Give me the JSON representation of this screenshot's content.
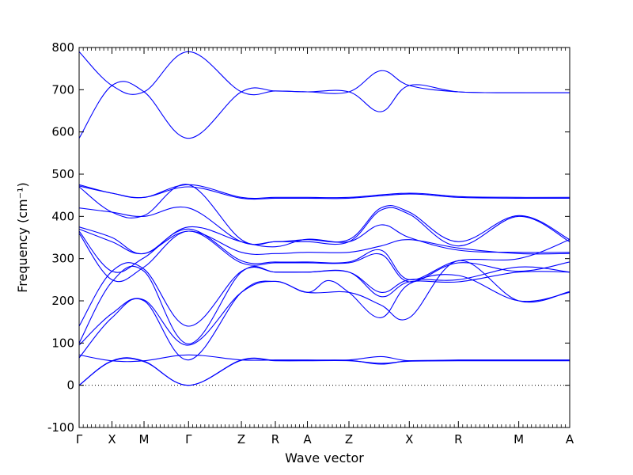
{
  "chart_data": {
    "type": "line",
    "xlabel": "Wave vector",
    "ylabel": "Frequency (cm⁻¹)",
    "ylim": [
      -100,
      800
    ],
    "yticks": [
      -100,
      0,
      100,
      200,
      300,
      400,
      500,
      600,
      700,
      800
    ],
    "x_range": [
      0,
      13
    ],
    "high_symmetry_points": [
      {
        "label": "Γ",
        "x": 0
      },
      {
        "label": "X",
        "x": 0.87
      },
      {
        "label": "M",
        "x": 1.72
      },
      {
        "label": "Γ",
        "x": 2.9
      },
      {
        "label": "Z",
        "x": 4.3
      },
      {
        "label": "R",
        "x": 5.2
      },
      {
        "label": "A",
        "x": 6.05
      },
      {
        "label": "Z",
        "x": 7.15
      },
      {
        "label": "X",
        "x": 8.75
      },
      {
        "label": "R",
        "x": 10.05
      },
      {
        "label": "M",
        "x": 11.65
      },
      {
        "label": "A",
        "x": 13
      }
    ],
    "zero_line": true,
    "color": "#0000ff",
    "series": [
      {
        "points": [
          [
            0,
            790
          ],
          [
            0.87,
            710
          ],
          [
            1.72,
            695
          ],
          [
            2.9,
            790
          ],
          [
            4.3,
            695
          ],
          [
            5.2,
            697
          ],
          [
            6.05,
            695
          ],
          [
            7.15,
            695
          ],
          [
            8.0,
            745
          ],
          [
            8.75,
            710
          ],
          [
            10.05,
            695
          ],
          [
            11.65,
            693
          ],
          [
            13,
            693
          ]
        ]
      },
      {
        "points": [
          [
            0,
            585
          ],
          [
            0.87,
            710
          ],
          [
            1.72,
            695
          ],
          [
            2.9,
            585
          ],
          [
            4.3,
            695
          ],
          [
            5.2,
            697
          ],
          [
            6.05,
            695
          ],
          [
            7.15,
            695
          ],
          [
            8.0,
            648
          ],
          [
            8.75,
            710
          ],
          [
            10.05,
            695
          ],
          [
            11.65,
            693
          ],
          [
            13,
            693
          ]
        ]
      },
      {
        "points": [
          [
            0,
            475
          ],
          [
            0.87,
            455
          ],
          [
            1.72,
            445
          ],
          [
            2.9,
            475
          ],
          [
            4.3,
            445
          ],
          [
            5.2,
            445
          ],
          [
            6.05,
            445
          ],
          [
            7.15,
            445
          ],
          [
            8.75,
            455
          ],
          [
            10.05,
            447
          ],
          [
            11.65,
            445
          ],
          [
            13,
            445
          ]
        ]
      },
      {
        "points": [
          [
            0,
            472
          ],
          [
            0.87,
            455
          ],
          [
            1.72,
            445
          ],
          [
            2.9,
            470
          ],
          [
            4.3,
            443
          ],
          [
            5.2,
            443
          ],
          [
            6.05,
            443
          ],
          [
            7.15,
            443
          ],
          [
            8.75,
            453
          ],
          [
            10.05,
            445
          ],
          [
            11.65,
            443
          ],
          [
            13,
            443
          ]
        ]
      },
      {
        "points": [
          [
            0,
            470
          ],
          [
            0.87,
            410
          ],
          [
            1.72,
            402
          ],
          [
            2.9,
            475
          ],
          [
            4.3,
            345
          ],
          [
            5.2,
            340
          ],
          [
            6.05,
            345
          ],
          [
            7.15,
            345
          ],
          [
            8.0,
            420
          ],
          [
            8.75,
            410
          ],
          [
            10.05,
            340
          ],
          [
            11.65,
            402
          ],
          [
            13,
            345
          ]
        ]
      },
      {
        "points": [
          [
            0,
            420
          ],
          [
            0.87,
            410
          ],
          [
            1.72,
            400
          ],
          [
            2.9,
            420
          ],
          [
            4.3,
            340
          ],
          [
            5.2,
            340
          ],
          [
            6.05,
            340
          ],
          [
            7.15,
            340
          ],
          [
            8.0,
            415
          ],
          [
            8.75,
            405
          ],
          [
            10.05,
            330
          ],
          [
            11.65,
            400
          ],
          [
            13,
            340
          ]
        ]
      },
      {
        "points": [
          [
            0,
            375
          ],
          [
            0.87,
            350
          ],
          [
            1.72,
            312
          ],
          [
            2.9,
            375
          ],
          [
            4.3,
            340
          ],
          [
            5.2,
            328
          ],
          [
            6.05,
            346
          ],
          [
            7.15,
            340
          ],
          [
            8.0,
            380
          ],
          [
            8.75,
            350
          ],
          [
            10.05,
            320
          ],
          [
            11.65,
            315
          ],
          [
            13,
            315
          ]
        ]
      },
      {
        "points": [
          [
            0,
            370
          ],
          [
            0.87,
            340
          ],
          [
            1.72,
            312
          ],
          [
            2.9,
            365
          ],
          [
            4.3,
            315
          ],
          [
            5.2,
            312
          ],
          [
            6.05,
            315
          ],
          [
            7.15,
            315
          ],
          [
            8.0,
            330
          ],
          [
            8.75,
            345
          ],
          [
            10.05,
            325
          ],
          [
            11.65,
            312
          ],
          [
            13,
            312
          ]
        ]
      },
      {
        "points": [
          [
            0,
            365
          ],
          [
            0.87,
            270
          ],
          [
            1.72,
            302
          ],
          [
            2.9,
            370
          ],
          [
            4.3,
            295
          ],
          [
            5.2,
            292
          ],
          [
            6.05,
            292
          ],
          [
            7.15,
            292
          ],
          [
            8.0,
            320
          ],
          [
            8.75,
            250
          ],
          [
            10.05,
            295
          ],
          [
            11.65,
            300
          ],
          [
            13,
            345
          ]
        ]
      },
      {
        "points": [
          [
            0,
            360
          ],
          [
            0.87,
            250
          ],
          [
            1.72,
            280
          ],
          [
            2.9,
            365
          ],
          [
            4.3,
            290
          ],
          [
            5.2,
            290
          ],
          [
            6.05,
            290
          ],
          [
            7.15,
            290
          ],
          [
            8.0,
            310
          ],
          [
            8.75,
            245
          ],
          [
            10.05,
            290
          ],
          [
            11.65,
            270
          ],
          [
            13,
            292
          ]
        ]
      },
      {
        "points": [
          [
            0,
            140
          ],
          [
            0.87,
            270
          ],
          [
            1.72,
            275
          ],
          [
            2.9,
            140
          ],
          [
            4.3,
            270
          ],
          [
            5.2,
            268
          ],
          [
            6.05,
            268
          ],
          [
            7.15,
            268
          ],
          [
            8.0,
            220
          ],
          [
            8.75,
            250
          ],
          [
            10.05,
            250
          ],
          [
            11.65,
            280
          ],
          [
            13,
            268
          ]
        ]
      },
      {
        "points": [
          [
            0,
            100
          ],
          [
            0.87,
            245
          ],
          [
            1.72,
            270
          ],
          [
            2.9,
            98
          ],
          [
            4.3,
            268
          ],
          [
            5.2,
            268
          ],
          [
            6.05,
            268
          ],
          [
            7.15,
            268
          ],
          [
            8.0,
            210
          ],
          [
            8.75,
            245
          ],
          [
            10.05,
            245
          ],
          [
            11.65,
            268
          ],
          [
            13,
            268
          ]
        ]
      },
      {
        "points": [
          [
            0,
            95
          ],
          [
            0.87,
            170
          ],
          [
            1.72,
            202
          ],
          [
            2.9,
            95
          ],
          [
            4.3,
            220
          ],
          [
            5.2,
            246
          ],
          [
            6.05,
            220
          ],
          [
            7.15,
            220
          ],
          [
            8.0,
            190
          ],
          [
            8.75,
            160
          ],
          [
            10.05,
            295
          ],
          [
            11.65,
            200
          ],
          [
            13,
            222
          ]
        ]
      },
      {
        "points": [
          [
            0,
            65
          ],
          [
            0.87,
            160
          ],
          [
            1.72,
            200
          ],
          [
            2.9,
            60
          ],
          [
            4.3,
            220
          ],
          [
            5.2,
            246
          ],
          [
            6.05,
            220
          ],
          [
            6.6,
            248
          ],
          [
            7.15,
            220
          ],
          [
            8.0,
            160
          ],
          [
            8.75,
            240
          ],
          [
            10.05,
            260
          ],
          [
            11.65,
            200
          ],
          [
            13,
            220
          ]
        ]
      },
      {
        "points": [
          [
            0,
            72
          ],
          [
            0.87,
            58
          ],
          [
            1.72,
            58
          ],
          [
            2.9,
            72
          ],
          [
            4.3,
            60
          ],
          [
            5.2,
            60
          ],
          [
            6.05,
            60
          ],
          [
            7.15,
            60
          ],
          [
            8.0,
            68
          ],
          [
            8.75,
            58
          ],
          [
            10.05,
            60
          ],
          [
            11.65,
            60
          ],
          [
            13,
            60
          ]
        ]
      },
      {
        "points": [
          [
            0,
            0
          ],
          [
            0.87,
            58
          ],
          [
            1.72,
            57
          ],
          [
            2.9,
            0
          ],
          [
            4.3,
            60
          ],
          [
            5.2,
            59
          ],
          [
            6.05,
            59
          ],
          [
            7.15,
            59
          ],
          [
            8.0,
            50
          ],
          [
            8.75,
            58
          ],
          [
            10.05,
            59
          ],
          [
            11.65,
            59
          ],
          [
            13,
            59
          ]
        ]
      },
      {
        "points": [
          [
            0,
            0
          ],
          [
            0.87,
            57
          ],
          [
            1.72,
            56
          ],
          [
            2.9,
            0
          ],
          [
            4.3,
            59
          ],
          [
            5.2,
            58
          ],
          [
            6.05,
            58
          ],
          [
            7.15,
            58
          ],
          [
            8.0,
            52
          ],
          [
            8.75,
            57
          ],
          [
            10.05,
            58
          ],
          [
            11.65,
            58
          ],
          [
            13,
            58
          ]
        ]
      }
    ]
  }
}
